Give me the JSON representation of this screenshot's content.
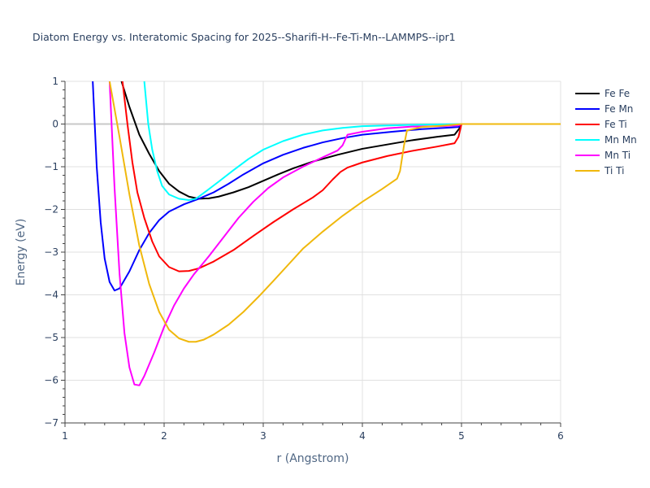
{
  "chart_data": {
    "type": "line",
    "title": "Diatom Energy vs. Interatomic Spacing for 2025--Sharifi-H--Fe-Ti-Mn--LAMMPS--ipr1",
    "xlabel": "r (Angstrom)",
    "ylabel": "Energy (eV)",
    "xlim": [
      1,
      6
    ],
    "ylim": [
      -7,
      1
    ],
    "xticks": [
      1,
      2,
      3,
      4,
      5,
      6
    ],
    "yticks": [
      1,
      0,
      -1,
      -2,
      -3,
      -4,
      -5,
      -6,
      -7
    ],
    "xtick_labels": [
      "1",
      "2",
      "3",
      "4",
      "5",
      "6"
    ],
    "ytick_labels": [
      "1",
      "0",
      "−1",
      "−2",
      "−3",
      "−4",
      "−5",
      "−6",
      "−7"
    ],
    "grid": true,
    "legend_position": "top-right",
    "series": [
      {
        "name": "Fe Fe",
        "color": "#000000",
        "points": [
          [
            1.57,
            1.0
          ],
          [
            1.65,
            0.4
          ],
          [
            1.75,
            -0.25
          ],
          [
            1.85,
            -0.7
          ],
          [
            1.95,
            -1.1
          ],
          [
            2.05,
            -1.4
          ],
          [
            2.15,
            -1.58
          ],
          [
            2.25,
            -1.7
          ],
          [
            2.35,
            -1.75
          ],
          [
            2.45,
            -1.74
          ],
          [
            2.55,
            -1.7
          ],
          [
            2.7,
            -1.6
          ],
          [
            2.85,
            -1.48
          ],
          [
            3.0,
            -1.33
          ],
          [
            3.15,
            -1.18
          ],
          [
            3.3,
            -1.04
          ],
          [
            3.5,
            -0.88
          ],
          [
            3.75,
            -0.72
          ],
          [
            4.0,
            -0.58
          ],
          [
            4.25,
            -0.48
          ],
          [
            4.5,
            -0.38
          ],
          [
            4.75,
            -0.3
          ],
          [
            4.93,
            -0.25
          ],
          [
            4.98,
            -0.1
          ],
          [
            5.0,
            0.0
          ],
          [
            6.0,
            0.0
          ]
        ]
      },
      {
        "name": "Fe Mn",
        "color": "#0000ff",
        "points": [
          [
            1.28,
            1.0
          ],
          [
            1.32,
            -1.0
          ],
          [
            1.36,
            -2.3
          ],
          [
            1.4,
            -3.15
          ],
          [
            1.45,
            -3.7
          ],
          [
            1.5,
            -3.9
          ],
          [
            1.55,
            -3.85
          ],
          [
            1.65,
            -3.45
          ],
          [
            1.75,
            -2.95
          ],
          [
            1.85,
            -2.55
          ],
          [
            1.95,
            -2.25
          ],
          [
            2.05,
            -2.05
          ],
          [
            2.2,
            -1.88
          ],
          [
            2.35,
            -1.75
          ],
          [
            2.5,
            -1.6
          ],
          [
            2.65,
            -1.4
          ],
          [
            2.8,
            -1.18
          ],
          [
            3.0,
            -0.92
          ],
          [
            3.2,
            -0.72
          ],
          [
            3.4,
            -0.56
          ],
          [
            3.6,
            -0.43
          ],
          [
            3.8,
            -0.33
          ],
          [
            4.0,
            -0.25
          ],
          [
            4.3,
            -0.18
          ],
          [
            4.6,
            -0.12
          ],
          [
            4.9,
            -0.08
          ],
          [
            4.97,
            -0.07
          ],
          [
            5.0,
            0.0
          ],
          [
            6.0,
            0.0
          ]
        ]
      },
      {
        "name": "Fe Ti",
        "color": "#ff0000",
        "points": [
          [
            1.58,
            1.0
          ],
          [
            1.63,
            0.0
          ],
          [
            1.68,
            -0.9
          ],
          [
            1.73,
            -1.6
          ],
          [
            1.8,
            -2.2
          ],
          [
            1.88,
            -2.75
          ],
          [
            1.95,
            -3.1
          ],
          [
            2.05,
            -3.35
          ],
          [
            2.15,
            -3.45
          ],
          [
            2.25,
            -3.44
          ],
          [
            2.35,
            -3.38
          ],
          [
            2.5,
            -3.22
          ],
          [
            2.7,
            -2.95
          ],
          [
            2.9,
            -2.62
          ],
          [
            3.1,
            -2.3
          ],
          [
            3.3,
            -2.0
          ],
          [
            3.5,
            -1.72
          ],
          [
            3.6,
            -1.55
          ],
          [
            3.7,
            -1.3
          ],
          [
            3.78,
            -1.12
          ],
          [
            3.85,
            -1.02
          ],
          [
            4.0,
            -0.9
          ],
          [
            4.25,
            -0.75
          ],
          [
            4.5,
            -0.63
          ],
          [
            4.75,
            -0.53
          ],
          [
            4.93,
            -0.45
          ],
          [
            4.97,
            -0.3
          ],
          [
            5.0,
            0.0
          ],
          [
            6.0,
            0.0
          ]
        ]
      },
      {
        "name": "Mn Mn",
        "color": "#00ffff",
        "points": [
          [
            1.8,
            1.0
          ],
          [
            1.84,
            0.0
          ],
          [
            1.88,
            -0.6
          ],
          [
            1.93,
            -1.1
          ],
          [
            1.98,
            -1.45
          ],
          [
            2.05,
            -1.65
          ],
          [
            2.15,
            -1.75
          ],
          [
            2.25,
            -1.78
          ],
          [
            2.32,
            -1.75
          ],
          [
            2.42,
            -1.58
          ],
          [
            2.55,
            -1.35
          ],
          [
            2.7,
            -1.08
          ],
          [
            2.85,
            -0.82
          ],
          [
            3.0,
            -0.6
          ],
          [
            3.2,
            -0.4
          ],
          [
            3.4,
            -0.25
          ],
          [
            3.6,
            -0.15
          ],
          [
            3.8,
            -0.09
          ],
          [
            4.0,
            -0.05
          ],
          [
            4.5,
            -0.02
          ],
          [
            5.0,
            0.0
          ],
          [
            6.0,
            0.0
          ]
        ]
      },
      {
        "name": "Mn Ti",
        "color": "#ff00ff",
        "points": [
          [
            1.45,
            1.0
          ],
          [
            1.5,
            -1.5
          ],
          [
            1.55,
            -3.5
          ],
          [
            1.6,
            -4.9
          ],
          [
            1.65,
            -5.7
          ],
          [
            1.7,
            -6.1
          ],
          [
            1.75,
            -6.12
          ],
          [
            1.8,
            -5.9
          ],
          [
            1.9,
            -5.35
          ],
          [
            2.0,
            -4.75
          ],
          [
            2.1,
            -4.25
          ],
          [
            2.2,
            -3.85
          ],
          [
            2.3,
            -3.52
          ],
          [
            2.45,
            -3.1
          ],
          [
            2.6,
            -2.65
          ],
          [
            2.75,
            -2.2
          ],
          [
            2.9,
            -1.82
          ],
          [
            3.05,
            -1.5
          ],
          [
            3.2,
            -1.25
          ],
          [
            3.4,
            -1.0
          ],
          [
            3.6,
            -0.78
          ],
          [
            3.75,
            -0.62
          ],
          [
            3.8,
            -0.5
          ],
          [
            3.85,
            -0.25
          ],
          [
            4.0,
            -0.18
          ],
          [
            4.25,
            -0.1
          ],
          [
            4.5,
            -0.06
          ],
          [
            4.8,
            -0.05
          ],
          [
            4.97,
            -0.03
          ],
          [
            5.0,
            0.0
          ],
          [
            6.0,
            0.0
          ]
        ]
      },
      {
        "name": "Ti Ti",
        "color": "#f0b80c",
        "points": [
          [
            1.45,
            1.0
          ],
          [
            1.55,
            -0.3
          ],
          [
            1.65,
            -1.65
          ],
          [
            1.75,
            -2.85
          ],
          [
            1.85,
            -3.75
          ],
          [
            1.95,
            -4.4
          ],
          [
            2.05,
            -4.82
          ],
          [
            2.15,
            -5.02
          ],
          [
            2.25,
            -5.1
          ],
          [
            2.32,
            -5.1
          ],
          [
            2.4,
            -5.05
          ],
          [
            2.5,
            -4.93
          ],
          [
            2.65,
            -4.7
          ],
          [
            2.8,
            -4.4
          ],
          [
            2.95,
            -4.05
          ],
          [
            3.1,
            -3.68
          ],
          [
            3.25,
            -3.3
          ],
          [
            3.4,
            -2.92
          ],
          [
            3.6,
            -2.52
          ],
          [
            3.8,
            -2.15
          ],
          [
            4.0,
            -1.82
          ],
          [
            4.2,
            -1.52
          ],
          [
            4.35,
            -1.28
          ],
          [
            4.38,
            -1.1
          ],
          [
            4.42,
            -0.5
          ],
          [
            4.45,
            -0.15
          ],
          [
            4.6,
            -0.07
          ],
          [
            4.8,
            -0.04
          ],
          [
            5.0,
            0.0
          ],
          [
            6.0,
            0.0
          ]
        ]
      }
    ]
  }
}
